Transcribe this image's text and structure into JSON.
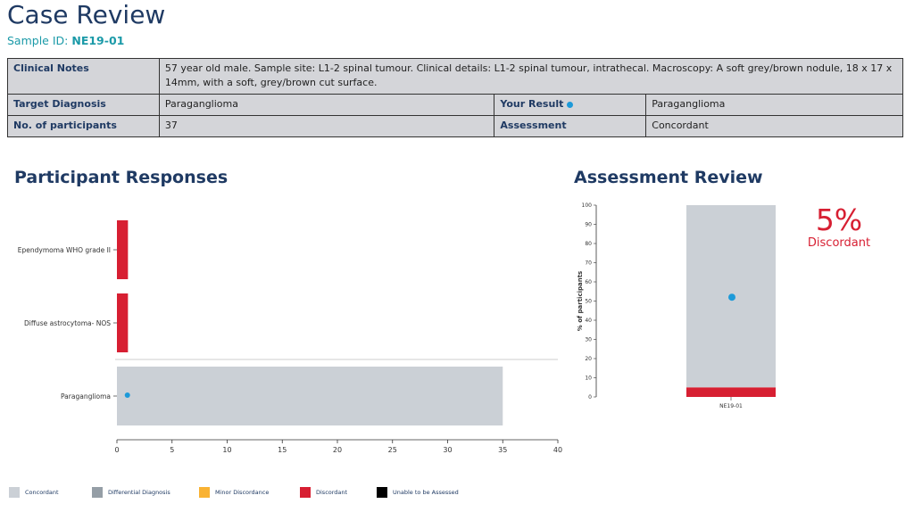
{
  "page": {
    "title": "Case Review",
    "sample_label": "Sample ID:",
    "sample_id": "NE19-01"
  },
  "info": {
    "clinical_notes_label": "Clinical Notes",
    "clinical_notes": "57 year old male. Sample site: L1-2 spinal tumour. Clinical details: L1-2 spinal tumour, intrathecal. Macroscopy: A soft grey/brown nodule, 18 x 17 x 14mm, with a soft, grey/brown cut surface.",
    "target_diagnosis_label": "Target Diagnosis",
    "target_diagnosis": "Paraganglioma",
    "your_result_label": "Your Result",
    "your_result": "Paraganglioma",
    "participants_label": "No. of participants",
    "participants": "37",
    "assessment_label": "Assessment",
    "assessment": "Concordant"
  },
  "sections": {
    "responses_title": "Participant Responses",
    "assessment_title": "Assessment Review"
  },
  "colors": {
    "concordant": "#cbd0d6",
    "differential": "#959ea6",
    "minor": "#f9b233",
    "discordant": "#d71f32",
    "unable": "#000000",
    "your_result_dot": "#1d9ad9"
  },
  "legend": [
    {
      "label": "Concordant",
      "color": "#cbd0d6"
    },
    {
      "label": "Differential Diagnosis",
      "color": "#959ea6"
    },
    {
      "label": "Minor Discordance",
      "color": "#f9b233"
    },
    {
      "label": "Discordant",
      "color": "#d71f32"
    },
    {
      "label": "Unable to be Assessed",
      "color": "#000000"
    }
  ],
  "chart_data": [
    {
      "type": "bar",
      "orientation": "horizontal",
      "categories": [
        "Ependymoma WHO grade II",
        "Diffuse astrocytoma- NOS",
        "Paraganglioma"
      ],
      "values": [
        1,
        1,
        35
      ],
      "categories_class": [
        "discordant",
        "discordant",
        "concordant"
      ],
      "your_result_category": "Paraganglioma",
      "xlim": [
        0,
        40
      ],
      "xticks": [
        0,
        5,
        10,
        15,
        20,
        25,
        30,
        35,
        40
      ]
    },
    {
      "type": "bar",
      "stacked": true,
      "categories": [
        "NE19-01"
      ],
      "series": [
        {
          "class": "discordant",
          "values": [
            5
          ]
        },
        {
          "class": "concordant",
          "values": [
            95
          ]
        }
      ],
      "ylabel": "% of participants",
      "ylim": [
        0,
        100
      ],
      "yticks": [
        0,
        10,
        20,
        30,
        40,
        50,
        60,
        70,
        80,
        90,
        100
      ],
      "your_result_percent": 52,
      "annotation_value": "5%",
      "annotation_label": "Discordant"
    }
  ]
}
